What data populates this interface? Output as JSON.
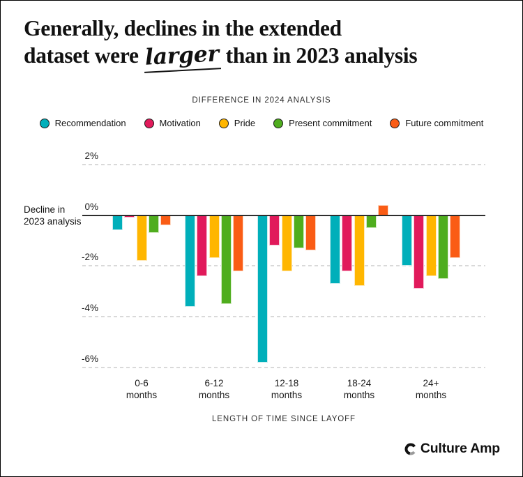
{
  "page": {
    "title": {
      "line1": "Generally, declines in the extended",
      "line2_pre": "dataset were ",
      "line2_word": "larger",
      "line2_post": " than in 2023 analysis"
    },
    "subtitle": "DIFFERENCE IN 2024 ANALYSIS",
    "zero_annotation": {
      "line1": "Decline in",
      "line2": "2023 analysis"
    },
    "x_axis_title": "LENGTH OF TIME SINCE LAYOFF",
    "logo": {
      "text": "Culture Amp",
      "icon": "culture-amp-c-logo"
    }
  },
  "chart_data": {
    "type": "bar",
    "orientation": "grouped-vertical",
    "title": "Generally, declines in the extended dataset were larger than in 2023 analysis",
    "subtitle": "DIFFERENCE IN 2024 ANALYSIS",
    "xlabel": "LENGTH OF TIME SINCE LAYOFF",
    "ylabel": "",
    "categories": [
      "0-6",
      "6-12",
      "12-18",
      "18-24",
      "24+"
    ],
    "category_unit": "months",
    "y_ticks": [
      {
        "value": 2,
        "label": "2%"
      },
      {
        "value": 0,
        "label": "0%"
      },
      {
        "value": -2,
        "label": "-2%"
      },
      {
        "value": -4,
        "label": "-4%"
      },
      {
        "value": -6,
        "label": "-6%"
      }
    ],
    "ylim": [
      -6.5,
      2.2
    ],
    "grid": "dashed-horizontal",
    "legend_position": "top",
    "zero_line_label": "Decline in 2023 analysis",
    "unit": "percentage points",
    "series": [
      {
        "name": "Recommendation",
        "color": "#00AFBA",
        "edge": "#C9ECEE",
        "values": [
          -0.6,
          -3.6,
          -5.8,
          -2.7,
          -2.0
        ]
      },
      {
        "name": "Motivation",
        "color": "#E11A5B",
        "edge": "#F7C5D7",
        "values": [
          -0.1,
          -2.4,
          -1.2,
          -2.2,
          -2.9
        ]
      },
      {
        "name": "Pride",
        "color": "#FFB600",
        "edge": "#FFE9B8",
        "values": [
          -1.8,
          -1.7,
          -2.2,
          -2.8,
          -2.4
        ]
      },
      {
        "name": "Present commitment",
        "color": "#4FAD1E",
        "edge": "#D5EBC5",
        "values": [
          -0.7,
          -3.5,
          -1.3,
          -0.5,
          -2.5
        ]
      },
      {
        "name": "Future commitment",
        "color": "#FA5C15",
        "edge": "#FDD6C0",
        "values": [
          -0.4,
          -2.2,
          -1.4,
          0.4,
          -1.7
        ]
      }
    ]
  }
}
